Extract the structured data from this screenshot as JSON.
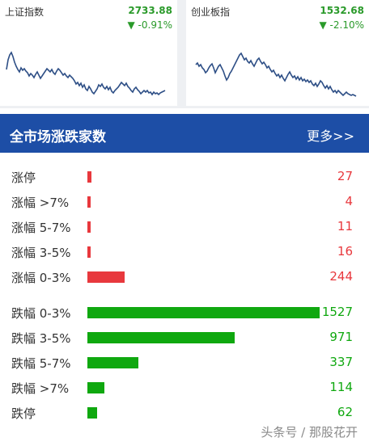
{
  "indices": {
    "left": {
      "name": "上证指数",
      "value": "2733.88",
      "change": "▼ -0.91%"
    },
    "right": {
      "name": "创业板指",
      "value": "1532.68",
      "change": "▼ -2.10%"
    }
  },
  "banner": {
    "title": "全市场涨跌家数",
    "more": "更多>>"
  },
  "chart_data": {
    "type": "bar",
    "categories": [
      "涨停",
      "涨幅 >7%",
      "涨幅 5-7%",
      "涨幅 3-5%",
      "涨幅 0-3%",
      "跌幅 0-3%",
      "跌幅 3-5%",
      "跌幅 5-7%",
      "跌幅 >7%",
      "跌停"
    ],
    "values": [
      27,
      4,
      11,
      16,
      244,
      1527,
      971,
      337,
      114,
      62
    ],
    "colors": [
      "#e8383d",
      "#e8383d",
      "#e8383d",
      "#e8383d",
      "#e8383d",
      "#0fa80f",
      "#0fa80f",
      "#0fa80f",
      "#0fa80f",
      "#0fa80f"
    ]
  },
  "watermark": "头条号 / 那股花开",
  "colors": {
    "up": "#e8383d",
    "down": "#0fa80f",
    "banner": "#1d4ea6",
    "index_green": "#2a9a2a"
  }
}
